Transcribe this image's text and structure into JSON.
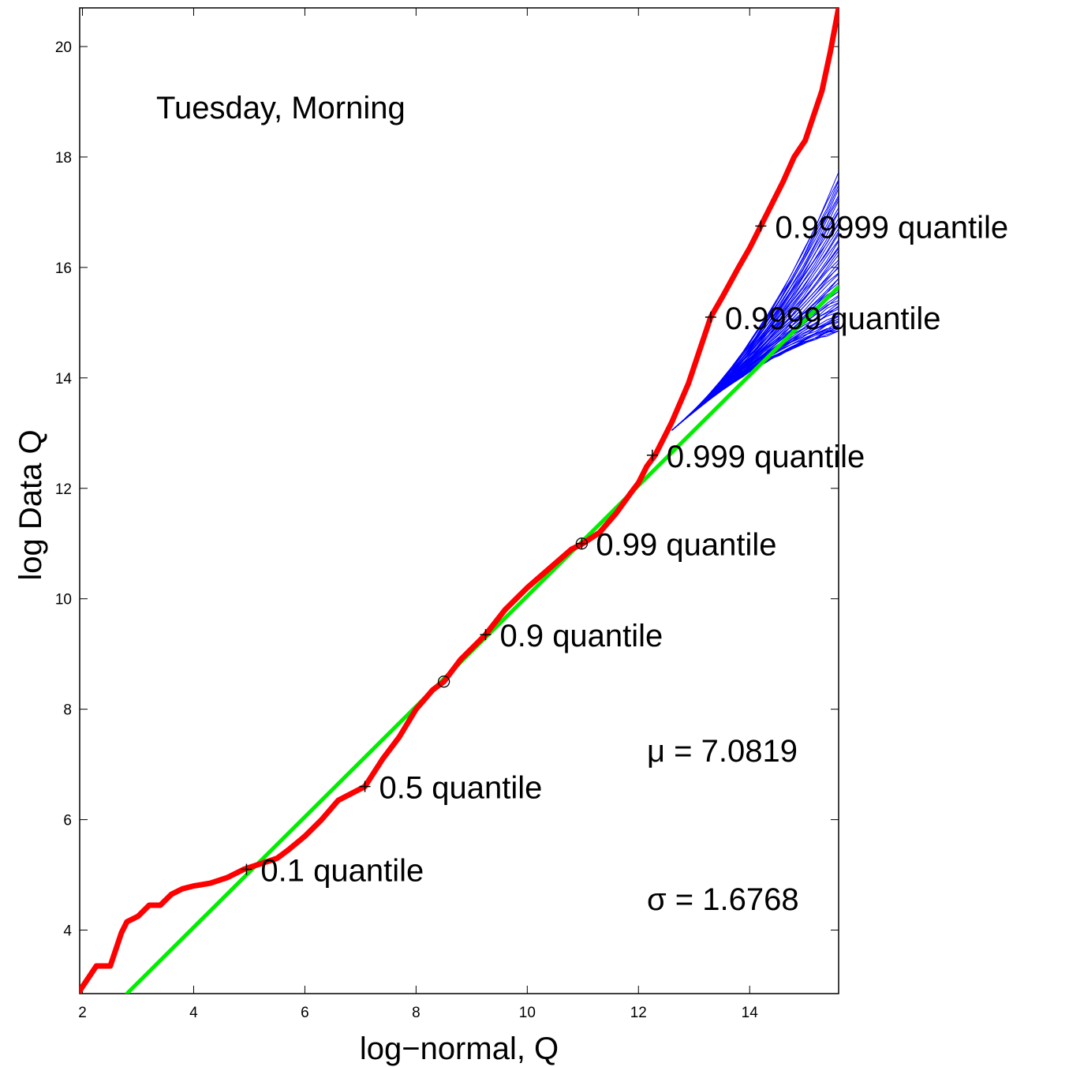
{
  "chart_data": {
    "type": "line",
    "title": "",
    "xlabel": "log−normal, Q",
    "ylabel": "log Data Q",
    "xlim": [
      1.95,
      15.6
    ],
    "ylim": [
      2.85,
      20.7
    ],
    "xticks": [
      2,
      4,
      6,
      8,
      10,
      12,
      14
    ],
    "yticks": [
      4,
      6,
      8,
      10,
      12,
      14,
      16,
      18,
      20
    ],
    "grid": false,
    "legend": "none",
    "colors": {
      "data": "#ff0000",
      "fit": "#00ee00",
      "simulations": "#0000ff",
      "markers": "#000000"
    },
    "series": [
      {
        "color": "#ff0000",
        "x": [
          1.95,
          2.25,
          2.5,
          2.7,
          2.8,
          3.0,
          3.2,
          3.4,
          3.6,
          3.8,
          4.0,
          4.3,
          4.6,
          4.9,
          5.2,
          5.5,
          5.7,
          6.0,
          6.3,
          6.6,
          7.08,
          7.4,
          7.7,
          8.0,
          8.3,
          8.5,
          8.8,
          9.25,
          9.6,
          10.0,
          10.4,
          10.8,
          11.0,
          11.3,
          11.6,
          11.85,
          12.0,
          12.15,
          12.3,
          12.6,
          12.9,
          13.1,
          13.3,
          13.5,
          13.8,
          14.0,
          14.2,
          14.4,
          14.6,
          14.8,
          15.0,
          15.15,
          15.3,
          15.45,
          15.6
        ],
        "y": [
          2.9,
          3.35,
          3.35,
          3.95,
          4.15,
          4.25,
          4.45,
          4.45,
          4.65,
          4.75,
          4.8,
          4.85,
          4.95,
          5.1,
          5.2,
          5.3,
          5.45,
          5.7,
          6.0,
          6.35,
          6.6,
          7.1,
          7.5,
          8.0,
          8.35,
          8.5,
          8.9,
          9.35,
          9.8,
          10.2,
          10.55,
          10.9,
          11.0,
          11.2,
          11.55,
          11.9,
          12.1,
          12.4,
          12.6,
          13.2,
          13.9,
          14.5,
          15.1,
          15.45,
          16.0,
          16.35,
          16.75,
          17.15,
          17.55,
          18.0,
          18.3,
          18.75,
          19.2,
          19.9,
          20.7
        ]
      },
      {
        "color": "#00ee00",
        "x": [
          2.8,
          15.6
        ],
        "y": [
          2.85,
          15.65
        ]
      }
    ],
    "simulation_band": {
      "color": "#0000ff",
      "start_x": 12.6,
      "start_y": 13.05,
      "end_x": 15.6,
      "end_y_range": [
        14.85,
        17.7
      ]
    },
    "markers": [
      {
        "shape": "circle",
        "x": 8.5,
        "y": 8.5
      },
      {
        "shape": "circle",
        "x": 10.98,
        "y": 11.0
      }
    ],
    "annotations": [
      {
        "text": "0.1 quantile",
        "x": 4.95,
        "y": 5.1
      },
      {
        "text": "0.5 quantile",
        "x": 7.08,
        "y": 6.6
      },
      {
        "text": "0.9 quantile",
        "x": 9.25,
        "y": 9.35
      },
      {
        "text": "0.99 quantile",
        "x": 10.98,
        "y": 11.0
      },
      {
        "text": "0.999 quantile",
        "x": 12.25,
        "y": 12.6
      },
      {
        "text": "0.9999 quantile",
        "x": 13.3,
        "y": 15.1
      },
      {
        "text": "0.99999 quantile",
        "x": 14.2,
        "y": 16.75
      }
    ],
    "labels": {
      "panel": "Tuesday, Morning",
      "mu": "μ = 7.0819",
      "sigma": "σ = 1.6768"
    }
  }
}
